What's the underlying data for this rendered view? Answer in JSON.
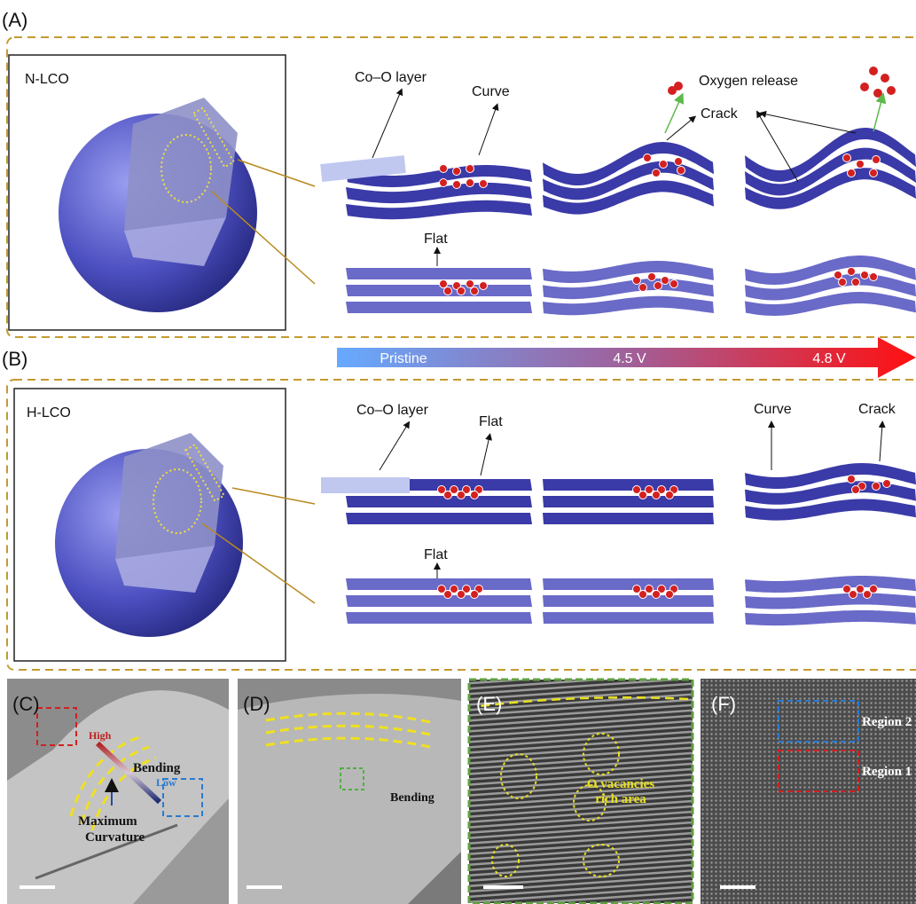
{
  "panel_a": {
    "label": "(A)",
    "sample": "N-LCO",
    "co_o_layer": "Co–O layer",
    "curve": "Curve",
    "oxygen_release": "Oxygen release",
    "crack": "Crack",
    "flat": "Flat"
  },
  "voltage_bar": {
    "stages": [
      "Pristine",
      "4.5 V",
      "4.8 V"
    ]
  },
  "panel_b": {
    "label": "(B)",
    "sample": "H-LCO",
    "co_o_layer": "Co–O layer",
    "flat_top": "Flat",
    "curve": "Curve",
    "crack": "Crack",
    "flat_bottom": "Flat"
  },
  "panel_c": {
    "label": "(C)",
    "high": "High",
    "low": "Low",
    "bending": "Bending",
    "max_curvature": [
      "Maximum",
      "Curvature"
    ]
  },
  "panel_d": {
    "label": "(D)",
    "bending": "Bending"
  },
  "panel_e": {
    "label": "(E)",
    "annotation": [
      "O vacancies",
      "rich area"
    ]
  },
  "panel_f": {
    "label": "(F)",
    "regions": [
      "Region 2",
      "Region 1"
    ]
  }
}
